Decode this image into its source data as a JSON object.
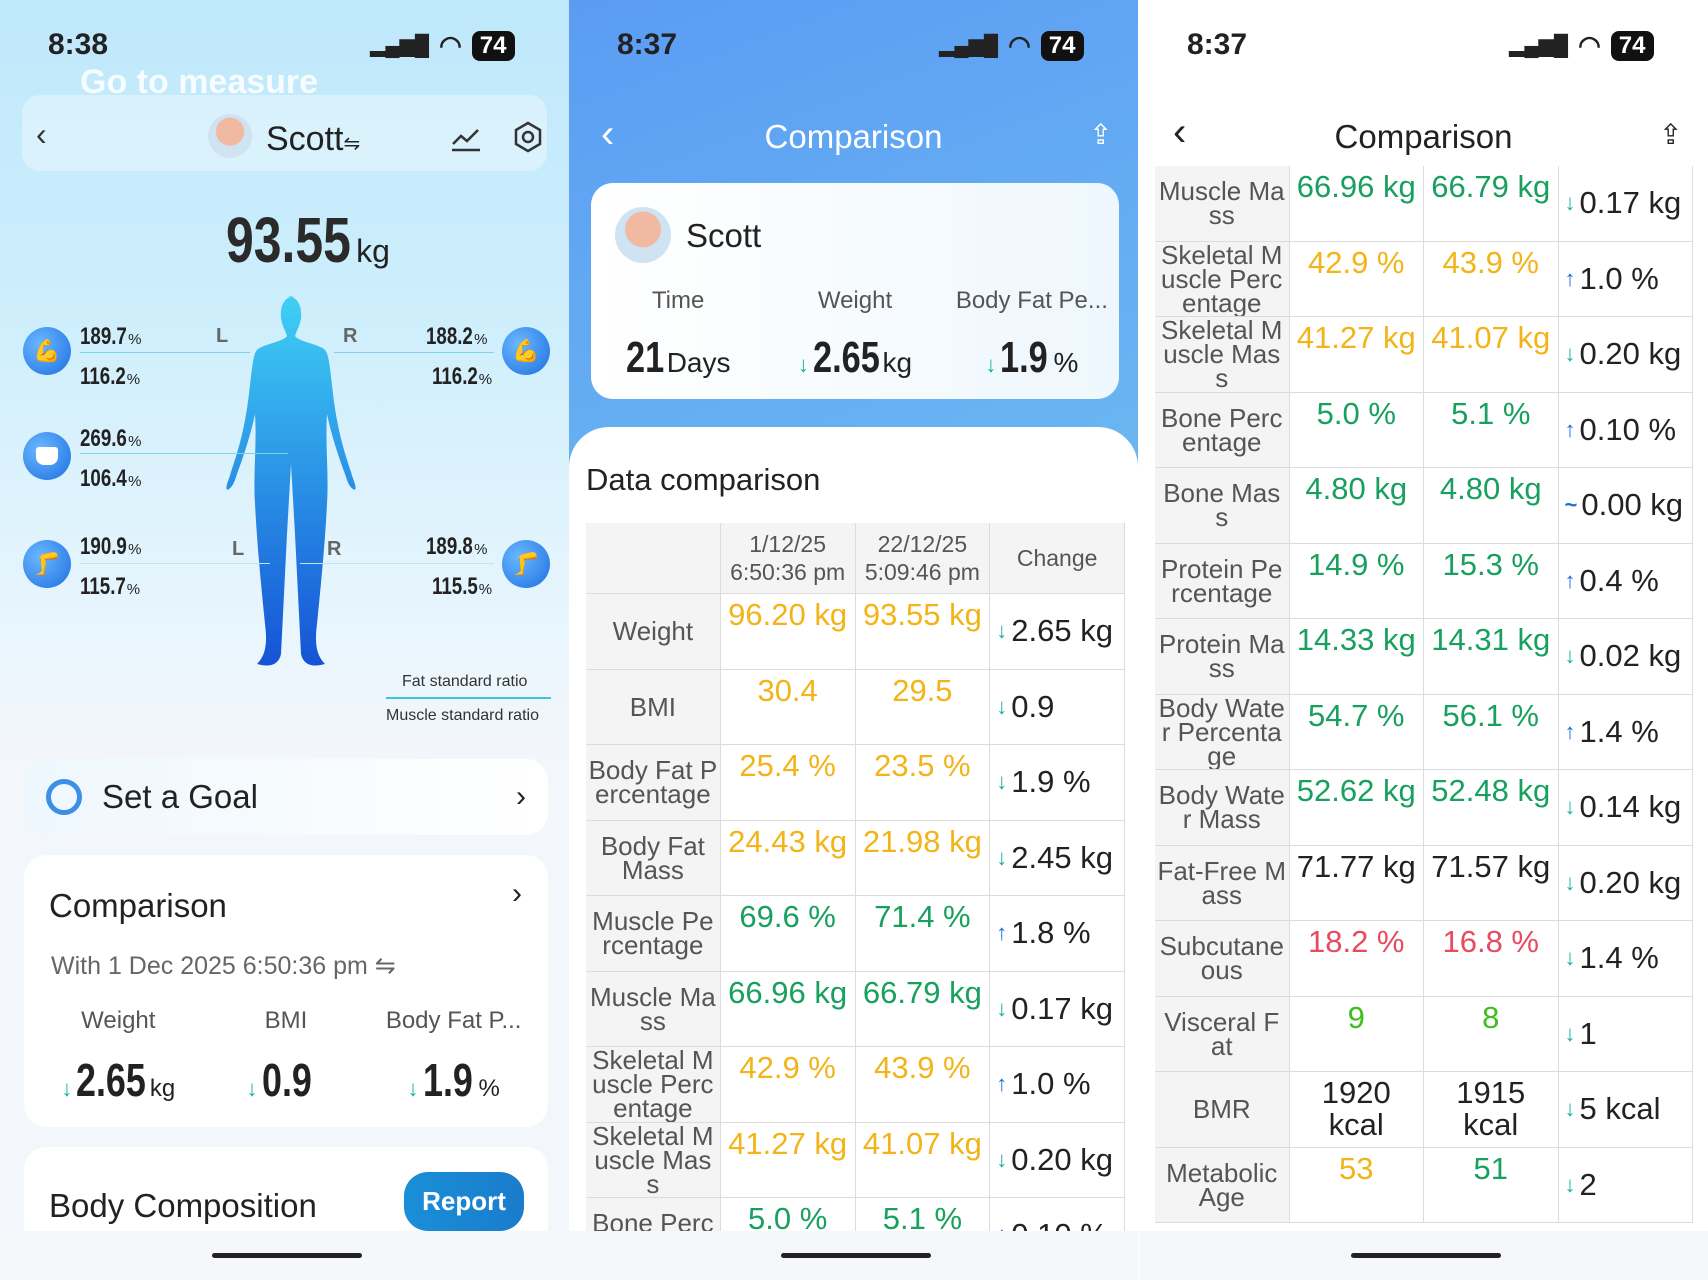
{
  "colors": {
    "yellow": "#f2b418",
    "green": "#18a05e",
    "red": "#e84a5f",
    "lime": "#3cbf1a",
    "black": "#222222",
    "down": "#17b0a2",
    "up": "#1a6fd6"
  },
  "screen1": {
    "status": {
      "time": "8:38",
      "battery": "74"
    },
    "header": {
      "ghost": "Go to measure",
      "user": "Scott",
      "swap": "⇋"
    },
    "weight": {
      "value": "93.55",
      "unit": "kg"
    },
    "segments": {
      "left_arm": [
        "189.7",
        "116.2"
      ],
      "right_arm": [
        "188.2",
        "116.2"
      ],
      "trunk": [
        "269.6",
        "106.4"
      ],
      "left_leg": [
        "190.9",
        "115.7"
      ],
      "right_leg": [
        "189.8",
        "115.5"
      ],
      "unit": "%",
      "L": "L",
      "R": "R"
    },
    "legend": {
      "fat": "Fat standard ratio",
      "muscle": "Muscle standard ratio"
    },
    "goal": {
      "label": "Set a Goal"
    },
    "comparison": {
      "title": "Comparison",
      "subtitle": "With 1 Dec 2025 6:50:36 pm ⇋",
      "labels": [
        "Weight",
        "BMI",
        "Body Fat P..."
      ],
      "values": [
        "2.65",
        "0.9",
        "1.9"
      ],
      "units": [
        "kg",
        "",
        "%"
      ]
    },
    "body_comp": {
      "title": "Body Composition",
      "report": "Report"
    }
  },
  "screen2": {
    "status": {
      "time": "8:37",
      "battery": "74"
    },
    "title": "Comparison",
    "user": "Scott",
    "summary": {
      "labels": [
        "Time",
        "Weight",
        "Body Fat Pe..."
      ],
      "values": [
        "21",
        "2.65",
        "1.9"
      ],
      "units": [
        "Days",
        "kg",
        "%"
      ]
    },
    "section": "Data comparison"
  },
  "screen3": {
    "status": {
      "time": "8:37",
      "battery": "74"
    },
    "title": "Comparison"
  },
  "table": {
    "headers": [
      "",
      "1/12/25 6:50:36 pm",
      "22/12/25 5:09:46 pm",
      "Change"
    ],
    "rows": [
      {
        "label": "Weight",
        "a": "96.20 kg",
        "b": "93.55 kg",
        "ca": "yellow",
        "cb": "yellow",
        "dir": "down",
        "change": "2.65 kg"
      },
      {
        "label": "BMI",
        "a": "30.4",
        "b": "29.5",
        "ca": "yellow",
        "cb": "yellow",
        "dir": "down",
        "change": "0.9"
      },
      {
        "label": "Body Fat Percentage",
        "a": "25.4 %",
        "b": "23.5 %",
        "ca": "yellow",
        "cb": "yellow",
        "dir": "down",
        "change": "1.9 %"
      },
      {
        "label": "Body Fat Mass",
        "a": "24.43 kg",
        "b": "21.98 kg",
        "ca": "yellow",
        "cb": "yellow",
        "dir": "down",
        "change": "2.45 kg"
      },
      {
        "label": "Muscle Percentage",
        "a": "69.6 %",
        "b": "71.4 %",
        "ca": "green",
        "cb": "green",
        "dir": "up",
        "change": "1.8 %"
      },
      {
        "label": "Muscle Mass",
        "a": "66.96 kg",
        "b": "66.79 kg",
        "ca": "green",
        "cb": "green",
        "dir": "down",
        "change": "0.17 kg"
      },
      {
        "label": "Skeletal Muscle Percentage",
        "a": "42.9 %",
        "b": "43.9 %",
        "ca": "yellow",
        "cb": "yellow",
        "dir": "up",
        "change": "1.0 %"
      },
      {
        "label": "Skeletal Muscle Mass",
        "a": "41.27 kg",
        "b": "41.07 kg",
        "ca": "yellow",
        "cb": "yellow",
        "dir": "down",
        "change": "0.20 kg"
      },
      {
        "label": "Bone Percentage",
        "a": "5.0 %",
        "b": "5.1 %",
        "ca": "green",
        "cb": "green",
        "dir": "up",
        "change": "0.10 %"
      },
      {
        "label": "Bone Mass",
        "a": "4.80 kg",
        "b": "4.80 kg",
        "ca": "green",
        "cb": "green",
        "dir": "same",
        "change": "0.00 kg"
      },
      {
        "label": "Protein Percentage",
        "a": "14.9 %",
        "b": "15.3 %",
        "ca": "green",
        "cb": "green",
        "dir": "up",
        "change": "0.4 %"
      },
      {
        "label": "Protein Mass",
        "a": "14.33 kg",
        "b": "14.31 kg",
        "ca": "green",
        "cb": "green",
        "dir": "down",
        "change": "0.02 kg"
      },
      {
        "label": "Body Water Percentage",
        "a": "54.7 %",
        "b": "56.1 %",
        "ca": "green",
        "cb": "green",
        "dir": "up",
        "change": "1.4 %"
      },
      {
        "label": "Body Water Mass",
        "a": "52.62 kg",
        "b": "52.48 kg",
        "ca": "green",
        "cb": "green",
        "dir": "down",
        "change": "0.14 kg"
      },
      {
        "label": "Fat-Free Mass",
        "a": "71.77 kg",
        "b": "71.57 kg",
        "ca": "black",
        "cb": "black",
        "dir": "down",
        "change": "0.20 kg"
      },
      {
        "label": "Subcutaneous",
        "a": "18.2 %",
        "b": "16.8 %",
        "ca": "red",
        "cb": "red",
        "dir": "down",
        "change": "1.4 %"
      },
      {
        "label": "Visceral Fat",
        "a": "9",
        "b": "8",
        "ca": "lime",
        "cb": "lime",
        "dir": "down",
        "change": "1"
      },
      {
        "label": "BMR",
        "a": "1920 kcal",
        "b": "1915 kcal",
        "ca": "black",
        "cb": "black",
        "dir": "down",
        "change": "5 kcal"
      },
      {
        "label": "Metabolic Age",
        "a": "53",
        "b": "51",
        "ca": "yellow",
        "cb": "green",
        "dir": "down",
        "change": "2"
      }
    ]
  }
}
